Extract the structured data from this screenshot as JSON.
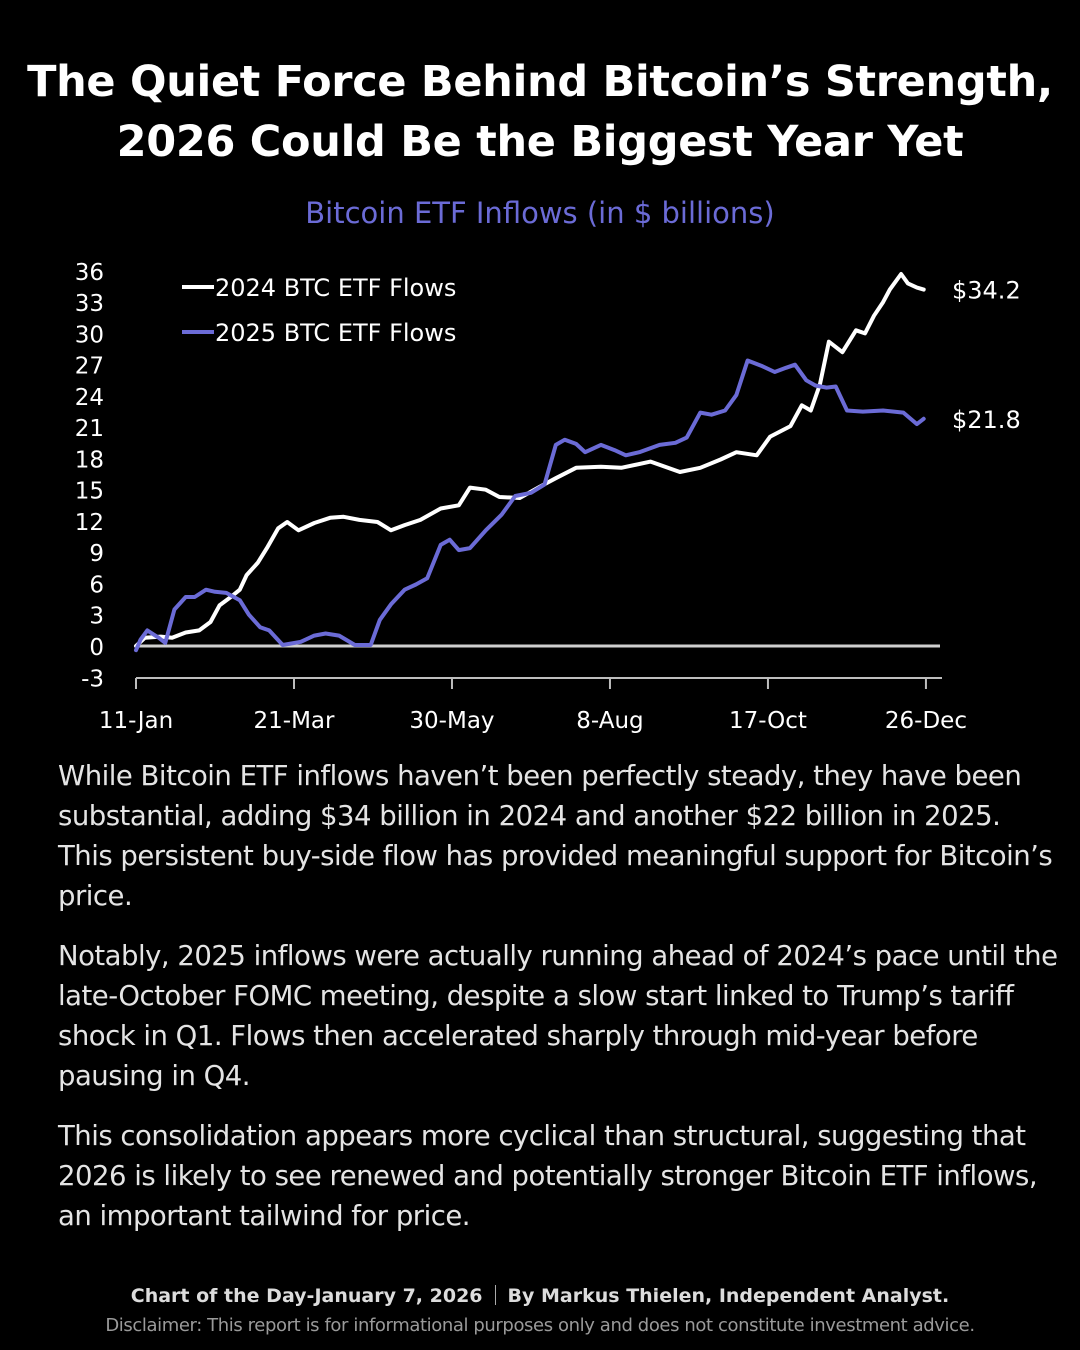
{
  "header": {
    "title_line1": "The Quiet Force Behind Bitcoin’s Strength,",
    "title_line2": "2026 Could Be the Biggest Year Yet"
  },
  "chart_data": {
    "type": "line",
    "title": "Bitcoin ETF Inflows (in $ billions)",
    "xlabel": "",
    "ylabel": "",
    "x_unit": "days since 11-Jan",
    "xlim": [
      0,
      356
    ],
    "ylim": [
      -3,
      36
    ],
    "yticks": [
      36,
      33,
      30,
      27,
      24,
      21,
      18,
      15,
      12,
      9,
      6,
      3,
      0,
      -3
    ],
    "xticks": [
      {
        "day": 0,
        "label": "11-Jan"
      },
      {
        "day": 70,
        "label": "21-Mar"
      },
      {
        "day": 140,
        "label": "30-May"
      },
      {
        "day": 210,
        "label": "8-Aug"
      },
      {
        "day": 280,
        "label": "17-Oct"
      },
      {
        "day": 350,
        "label": "26-Dec"
      }
    ],
    "grid": false,
    "legend_position": "top-left",
    "series": [
      {
        "name": "2024 BTC ETF Flows",
        "color": "#ffffff",
        "end_label": "$34.2",
        "x": [
          0,
          4,
          11,
          16,
          22,
          28,
          33,
          37,
          42,
          46,
          49,
          54,
          58,
          63,
          67,
          72,
          79,
          86,
          92,
          99,
          107,
          113,
          119,
          126,
          135,
          143,
          148,
          155,
          161,
          170,
          179,
          186,
          195,
          206,
          215,
          228,
          241,
          250,
          259,
          266,
          275,
          281,
          290,
          295,
          299,
          303,
          307,
          313,
          319,
          323,
          327,
          331,
          334,
          339,
          342,
          346,
          349
        ],
        "y": [
          0,
          0.8,
          0.9,
          0.8,
          1.3,
          1.5,
          2.3,
          3.9,
          4.7,
          5.4,
          6.8,
          8.0,
          9.4,
          11.3,
          11.9,
          11.1,
          11.8,
          12.3,
          12.4,
          12.1,
          11.9,
          11.1,
          11.6,
          12.1,
          13.2,
          13.5,
          15.2,
          15.0,
          14.3,
          14.2,
          15.3,
          16.1,
          17.1,
          17.2,
          17.1,
          17.7,
          16.7,
          17.1,
          17.9,
          18.6,
          18.3,
          20.1,
          21.1,
          23.1,
          22.6,
          25.1,
          29.2,
          28.2,
          30.3,
          30.0,
          31.7,
          33.0,
          34.2,
          35.7,
          34.8,
          34.4,
          34.2
        ]
      },
      {
        "name": "2025 BTC ETF Flows",
        "color": "#6b6bd6",
        "end_label": "$21.8",
        "x": [
          0,
          2,
          5,
          10,
          13,
          17,
          22,
          26,
          31,
          35,
          40,
          46,
          50,
          55,
          59,
          65,
          73,
          79,
          84,
          90,
          97,
          104,
          108,
          113,
          119,
          124,
          129,
          135,
          139,
          143,
          148,
          155,
          162,
          168,
          175,
          181,
          186,
          190,
          195,
          199,
          206,
          212,
          217,
          223,
          232,
          239,
          244,
          250,
          255,
          261,
          266,
          271,
          277,
          283,
          288,
          292,
          297,
          301,
          306,
          310,
          315,
          322,
          331,
          340,
          346,
          349
        ],
        "y": [
          -0.4,
          0.6,
          1.5,
          0.8,
          0.3,
          3.5,
          4.7,
          4.7,
          5.4,
          5.2,
          5.1,
          4.4,
          3.0,
          1.8,
          1.5,
          0.1,
          0.4,
          1.0,
          1.2,
          1.0,
          0.1,
          0.1,
          2.5,
          4.0,
          5.4,
          5.9,
          6.5,
          9.7,
          10.2,
          9.2,
          9.4,
          11.1,
          12.6,
          14.4,
          14.7,
          15.5,
          19.3,
          19.8,
          19.4,
          18.6,
          19.3,
          18.8,
          18.3,
          18.6,
          19.3,
          19.5,
          20.0,
          22.4,
          22.2,
          22.6,
          24.1,
          27.4,
          26.9,
          26.3,
          26.7,
          27.0,
          25.5,
          25.0,
          24.8,
          24.9,
          22.6,
          22.5,
          22.6,
          22.4,
          21.3,
          21.8
        ]
      }
    ]
  },
  "body": {
    "paragraphs": [
      "While Bitcoin ETF inflows haven’t been perfectly steady, they have been substantial, adding $34 billion in 2024 and another $22 billion in 2025. This persistent buy-side flow has provided meaningful support for Bitcoin’s price.",
      "Notably, 2025 inflows were actually running ahead of 2024’s pace until the late-October FOMC meeting, despite a slow start linked to Trump’s tariff shock in Q1. Flows then accelerated sharply through mid-year before pausing in Q4.",
      "This consolidation appears more cyclical than structural, suggesting that 2026 is likely to see renewed and potentially stronger Bitcoin ETF inflows, an important tailwind for price."
    ]
  },
  "footer": {
    "credit_left": "Chart of the Day-January 7, 2026",
    "credit_right": "By Markus Thielen, Independent Analyst.",
    "disclaimer": "Disclaimer: This report is for informational purposes only and does not constitute investment advice."
  }
}
